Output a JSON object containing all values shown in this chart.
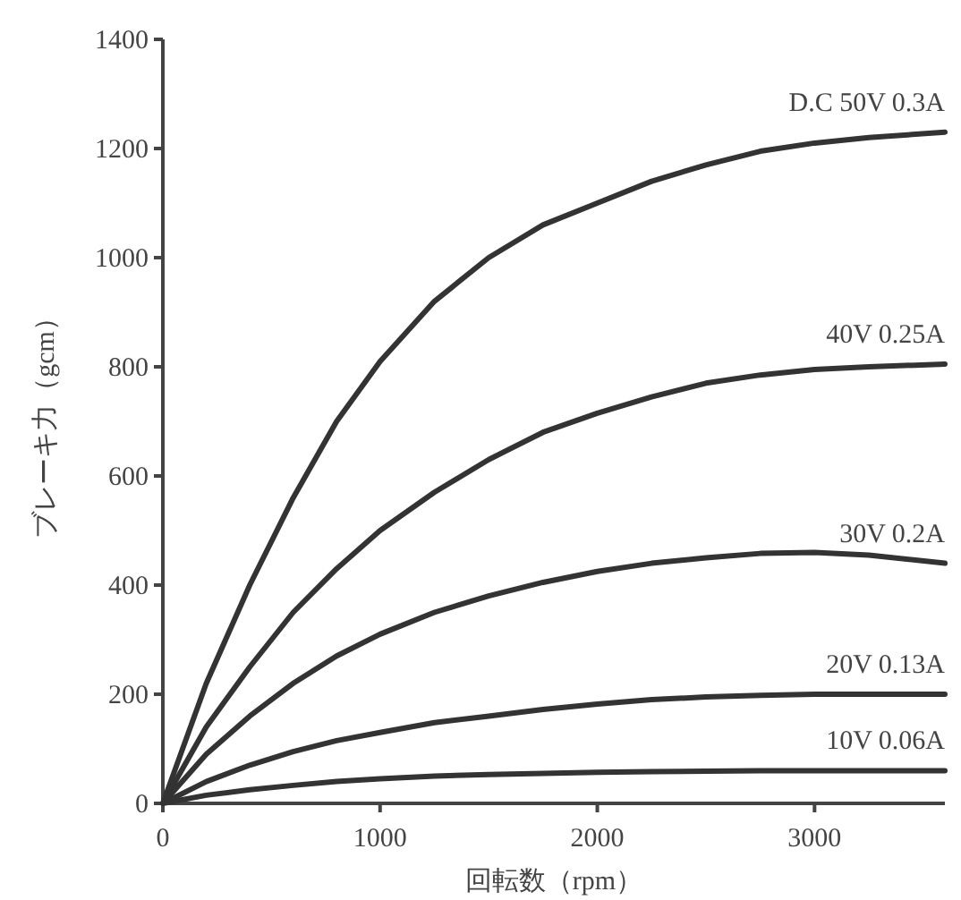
{
  "chart_data": {
    "type": "line",
    "xlabel": "回転数（rpm）",
    "ylabel": "ブレーキ力（gcm）",
    "x": [
      0,
      200,
      400,
      600,
      800,
      1000,
      1250,
      1500,
      1750,
      2000,
      2250,
      2500,
      2750,
      3000,
      3250,
      3600
    ],
    "series": [
      {
        "name": "D.C 50V  0.3A",
        "color": "#333333",
        "values": [
          0,
          220,
          400,
          560,
          700,
          810,
          920,
          1000,
          1060,
          1100,
          1140,
          1170,
          1195,
          1210,
          1220,
          1230
        ]
      },
      {
        "name": "40V  0.25A",
        "color": "#333333",
        "values": [
          0,
          140,
          250,
          350,
          430,
          500,
          570,
          630,
          680,
          715,
          745,
          770,
          785,
          795,
          800,
          805
        ]
      },
      {
        "name": "30V  0.2A",
        "color": "#333333",
        "values": [
          0,
          90,
          160,
          220,
          270,
          310,
          350,
          380,
          405,
          425,
          440,
          450,
          458,
          460,
          455,
          440
        ]
      },
      {
        "name": "20V  0.13A",
        "color": "#333333",
        "values": [
          0,
          40,
          70,
          95,
          115,
          130,
          148,
          160,
          172,
          182,
          190,
          195,
          198,
          200,
          200,
          200
        ]
      },
      {
        "name": "10V  0.06A",
        "color": "#333333",
        "values": [
          0,
          15,
          25,
          33,
          40,
          45,
          50,
          53,
          55,
          57,
          58,
          59,
          60,
          60,
          60,
          60
        ]
      }
    ],
    "xlim": [
      0,
      3600
    ],
    "ylim": [
      0,
      1400
    ],
    "xticks": [
      0,
      1000,
      2000,
      3000
    ],
    "yticks": [
      0,
      200,
      400,
      600,
      800,
      1000,
      1200,
      1400
    ],
    "grid": false,
    "marker": "none",
    "line_style": "solid"
  }
}
